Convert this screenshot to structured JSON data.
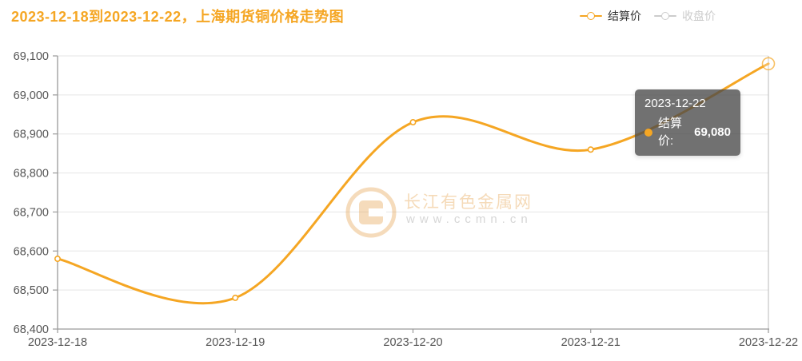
{
  "header": {
    "title": "2023-12-18到2023-12-22，上海期货铜价格走势图",
    "title_color": "#F5A623"
  },
  "legend": {
    "items": [
      {
        "label": "结算价",
        "color": "#F5A623",
        "active": true
      },
      {
        "label": "收盘价",
        "color": "#cccccc",
        "active": false
      }
    ],
    "inactive_color": "#cccccc",
    "active_text_color": "#333333"
  },
  "tooltip": {
    "date": "2023-12-22",
    "series_label": "结算价:",
    "value": "69,080",
    "dot_color": "#F5A623"
  },
  "watermark": {
    "site_name": "长江有色金属网",
    "site_url": "www.ccmn.cn"
  },
  "chart_data": {
    "type": "line",
    "title": "2023-12-18到2023-12-22，上海期货铜价格走势图",
    "x": [
      "2023-12-18",
      "2023-12-19",
      "2023-12-20",
      "2023-12-21",
      "2023-12-22"
    ],
    "series": [
      {
        "name": "结算价",
        "values": [
          68580,
          68480,
          68930,
          68860,
          69080
        ]
      },
      {
        "name": "收盘价",
        "values": null,
        "note": "hidden (legend toggled off)"
      }
    ],
    "ylim": [
      68400,
      69100
    ],
    "ytick_interval": 100,
    "ytick_labels": [
      "68,400",
      "68,500",
      "68,600",
      "68,700",
      "68,800",
      "68,900",
      "69,000",
      "69,100"
    ],
    "xlabel": "",
    "ylabel": "",
    "grid": true,
    "smooth": true,
    "legend_position": "top-right",
    "line_color": "#F5A623",
    "hover_index": 4,
    "hovered_value_label": "69,080"
  }
}
